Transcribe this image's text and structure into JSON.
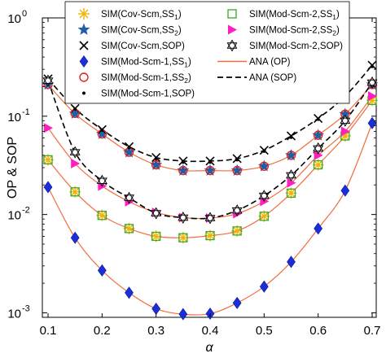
{
  "chart_data": {
    "type": "line",
    "xlabel": "α",
    "ylabel": "OP & SOP",
    "xlim": [
      0.1,
      0.7
    ],
    "ylim": [
      0.0009,
      1
    ],
    "yscale": "log",
    "grid": false,
    "legend_position": "top",
    "x_ticks": [
      "0.1",
      "0.2",
      "0.3",
      "0.4",
      "0.5",
      "0.6",
      "0.7"
    ],
    "y_ticks": [
      {
        "value": 0.001,
        "base": "10",
        "exp": "-3"
      },
      {
        "value": 0.01,
        "base": "10",
        "exp": "-2"
      },
      {
        "value": 0.1,
        "base": "10",
        "exp": "-1"
      },
      {
        "value": 1,
        "base": "10",
        "exp": "0"
      }
    ],
    "sim_x": [
      0.1,
      0.15,
      0.2,
      0.25,
      0.3,
      0.35,
      0.4,
      0.45,
      0.5,
      0.55,
      0.6,
      0.65,
      0.7
    ],
    "series": [
      {
        "label": "SIM(Cov-Scm,SS",
        "sub": "1",
        "tail": ")",
        "marker": "asterisk",
        "color": "#f0b400",
        "values": [
          0.036,
          0.017,
          0.0098,
          0.0072,
          0.006,
          0.0058,
          0.0061,
          0.0068,
          0.0096,
          0.0165,
          0.032,
          0.063,
          0.145
        ]
      },
      {
        "label": "SIM(Cov-Scm,SS",
        "sub": "2",
        "tail": ")",
        "marker": "star",
        "color": "#1f5fa8",
        "values": [
          0.21,
          0.106,
          0.066,
          0.043,
          0.032,
          0.028,
          0.028,
          0.028,
          0.031,
          0.04,
          0.064,
          0.105,
          0.21
        ]
      },
      {
        "label": "SIM(Cov-Scm,SOP)",
        "sub": "",
        "tail": "",
        "marker": "x",
        "color": "#000000",
        "values": [
          0.24,
          0.12,
          0.073,
          0.049,
          0.038,
          0.035,
          0.035,
          0.037,
          0.045,
          0.063,
          0.095,
          0.16,
          0.33
        ]
      },
      {
        "label": "SIM(Mod-Scm-1,SS",
        "sub": "1",
        "tail": ")",
        "marker": "diamond",
        "color": "#1c2ed6",
        "values": [
          0.019,
          0.0058,
          0.0027,
          0.0016,
          0.0011,
          0.00097,
          0.00098,
          0.00126,
          0.00185,
          0.0033,
          0.0072,
          0.0175,
          0.085
        ]
      },
      {
        "label": "SIM(Mod-Scm-1,SS",
        "sub": "2",
        "tail": ")",
        "marker": "circle",
        "color": "#e02020",
        "values": [
          0.21,
          0.107,
          0.066,
          0.043,
          0.032,
          0.028,
          0.028,
          0.028,
          0.031,
          0.04,
          0.064,
          0.105,
          0.21
        ]
      },
      {
        "label": "SIM(Mod-Scm-1,SOP)",
        "sub": "",
        "tail": "",
        "marker": "dot",
        "color": "#000000",
        "values": [
          0.23,
          0.118,
          0.072,
          0.048,
          0.037,
          0.034,
          0.034,
          0.036,
          0.044,
          0.061,
          0.093,
          0.155,
          0.32
        ]
      },
      {
        "label": "SIM(Mod-Scm-2,SS",
        "sub": "1",
        "tail": ")",
        "marker": "square",
        "color": "#3aa62a",
        "values": [
          0.036,
          0.017,
          0.0098,
          0.0072,
          0.006,
          0.0058,
          0.0061,
          0.0068,
          0.0096,
          0.0165,
          0.032,
          0.063,
          0.145
        ]
      },
      {
        "label": "SIM(Mod-Scm-2,SS",
        "sub": "2",
        "tail": ")",
        "marker": "triangle",
        "color": "#ff1fc0",
        "values": [
          0.076,
          0.033,
          0.0195,
          0.0135,
          0.0105,
          0.0093,
          0.0092,
          0.0102,
          0.0136,
          0.021,
          0.04,
          0.07,
          0.16
        ]
      },
      {
        "label": "SIM(Mod-Scm-2,SOP)",
        "sub": "",
        "tail": "",
        "marker": "hexstar",
        "color": "#000000",
        "values": [
          0.23,
          0.043,
          0.022,
          0.0148,
          0.0103,
          0.0093,
          0.0092,
          0.011,
          0.0155,
          0.025,
          0.047,
          0.09,
          0.22
        ]
      },
      {
        "label": "ANA (OP)",
        "sub": "",
        "tail": "",
        "marker": "line",
        "color": "#f26d3d",
        "values": []
      },
      {
        "label": "ANA (SOP)",
        "sub": "",
        "tail": "",
        "marker": "dashed",
        "color": "#000000",
        "values": []
      }
    ],
    "analytic_curves": [
      {
        "kind": "solid",
        "color": "#f26d3d",
        "x": [
          0.1,
          0.15,
          0.2,
          0.25,
          0.3,
          0.35,
          0.4,
          0.45,
          0.5,
          0.55,
          0.6,
          0.65,
          0.7
        ],
        "values": [
          0.036,
          0.017,
          0.0098,
          0.0072,
          0.006,
          0.0058,
          0.0061,
          0.0068,
          0.0096,
          0.0165,
          0.032,
          0.063,
          0.145
        ]
      },
      {
        "kind": "solid",
        "color": "#f26d3d",
        "x": [
          0.1,
          0.15,
          0.2,
          0.25,
          0.3,
          0.35,
          0.4,
          0.45,
          0.5,
          0.55,
          0.6,
          0.65,
          0.7
        ],
        "values": [
          0.21,
          0.106,
          0.066,
          0.043,
          0.032,
          0.028,
          0.028,
          0.028,
          0.031,
          0.04,
          0.064,
          0.105,
          0.21
        ]
      },
      {
        "kind": "solid",
        "color": "#f26d3d",
        "x": [
          0.1,
          0.15,
          0.2,
          0.25,
          0.3,
          0.35,
          0.4,
          0.45,
          0.5,
          0.55,
          0.6,
          0.65,
          0.7
        ],
        "values": [
          0.019,
          0.0058,
          0.0027,
          0.0016,
          0.0011,
          0.00097,
          0.00098,
          0.00126,
          0.00185,
          0.0033,
          0.0072,
          0.0175,
          0.085
        ]
      },
      {
        "kind": "solid",
        "color": "#f26d3d",
        "x": [
          0.1,
          0.15,
          0.2,
          0.25,
          0.3,
          0.35,
          0.4,
          0.45,
          0.5,
          0.55,
          0.6,
          0.65,
          0.7
        ],
        "values": [
          0.076,
          0.033,
          0.0195,
          0.0135,
          0.0105,
          0.0093,
          0.0092,
          0.0102,
          0.0136,
          0.021,
          0.04,
          0.07,
          0.16
        ]
      },
      {
        "kind": "dashed",
        "color": "#000000",
        "x": [
          0.1,
          0.15,
          0.2,
          0.25,
          0.3,
          0.35,
          0.4,
          0.45,
          0.5,
          0.55,
          0.6,
          0.65,
          0.7
        ],
        "values": [
          0.24,
          0.12,
          0.073,
          0.049,
          0.038,
          0.035,
          0.035,
          0.037,
          0.045,
          0.063,
          0.095,
          0.16,
          0.33
        ]
      },
      {
        "kind": "dashed",
        "color": "#000000",
        "x": [
          0.1,
          0.15,
          0.2,
          0.25,
          0.3,
          0.35,
          0.4,
          0.45,
          0.5,
          0.55,
          0.6,
          0.65,
          0.7
        ],
        "values": [
          0.23,
          0.043,
          0.022,
          0.0148,
          0.0103,
          0.0093,
          0.0092,
          0.011,
          0.0155,
          0.025,
          0.047,
          0.09,
          0.22
        ]
      }
    ]
  }
}
